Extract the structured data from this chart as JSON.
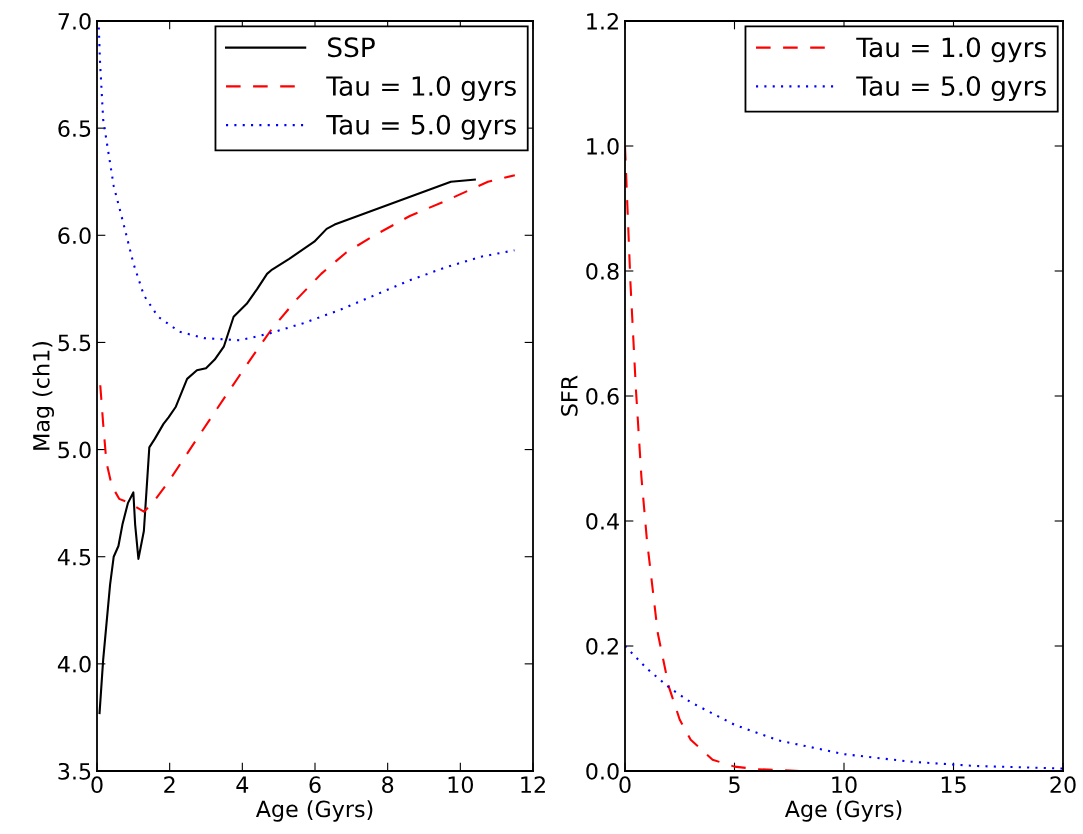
{
  "chart_data": [
    {
      "type": "line",
      "xlabel": "Age (Gyrs)",
      "ylabel": "Mag (ch1)",
      "xlim": [
        0,
        12
      ],
      "ylim": [
        3.5,
        7.0
      ],
      "xticks": [
        0,
        2,
        4,
        6,
        8,
        10,
        12
      ],
      "yticks": [
        3.5,
        {
          "value": 4,
          "label": "4.0"
        },
        4.5,
        {
          "value": 5,
          "label": "5.0"
        },
        5.5,
        {
          "value": 6,
          "label": "6.0"
        },
        6.5,
        {
          "value": 7,
          "label": "7.0"
        }
      ],
      "legend": "top right",
      "grid": false,
      "series": [
        {
          "name": "SSP",
          "color": "#000000",
          "line_style": "solid",
          "x": [
            0.07,
            0.17,
            0.36,
            0.46,
            0.59,
            0.7,
            0.85,
            1.0,
            1.05,
            1.14,
            1.29,
            1.44,
            1.59,
            1.83,
            1.97,
            2.17,
            2.48,
            2.75,
            3.0,
            3.24,
            3.49,
            3.76,
            4.12,
            4.41,
            4.68,
            4.82,
            5.29,
            5.98,
            6.32,
            6.54,
            9.74,
            10.4
          ],
          "values": [
            3.77,
            4.02,
            4.37,
            4.5,
            4.55,
            4.65,
            4.75,
            4.8,
            4.65,
            4.49,
            4.62,
            5.01,
            5.05,
            5.12,
            5.15,
            5.2,
            5.33,
            5.37,
            5.38,
            5.42,
            5.48,
            5.62,
            5.68,
            5.75,
            5.82,
            5.84,
            5.89,
            5.97,
            6.03,
            6.05,
            6.25,
            6.26
          ]
        },
        {
          "name": "Tau = 1.0 gyrs",
          "color": "#ff0000",
          "line_style": "dashed",
          "x": [
            0.09,
            0.17,
            0.26,
            0.41,
            0.61,
            0.9,
            1.29,
            1.53,
            1.97,
            2.75,
            3.54,
            4.22,
            4.8,
            5.49,
            6.17,
            6.86,
            7.64,
            8.61,
            9.59,
            10.76,
            11.5
          ],
          "values": [
            5.3,
            5.12,
            4.94,
            4.83,
            4.77,
            4.75,
            4.71,
            4.75,
            4.85,
            5.05,
            5.25,
            5.42,
            5.56,
            5.7,
            5.82,
            5.92,
            6.0,
            6.09,
            6.16,
            6.25,
            6.28
          ]
        },
        {
          "name": "Tau = 5.0 gyrs",
          "color": "#0000ff",
          "line_style": "dotted",
          "x": [
            0.05,
            0.08,
            0.17,
            0.46,
            0.75,
            1.0,
            1.29,
            1.68,
            2.27,
            2.95,
            3.93,
            4.71,
            5.68,
            6.66,
            7.64,
            8.61,
            9.59,
            10.57,
            11.49
          ],
          "values": [
            6.97,
            6.82,
            6.54,
            6.23,
            6.04,
            5.87,
            5.72,
            5.62,
            5.55,
            5.52,
            5.51,
            5.54,
            5.59,
            5.65,
            5.72,
            5.79,
            5.85,
            5.9,
            5.93
          ]
        }
      ]
    },
    {
      "type": "line",
      "xlabel": "Age (Gyrs)",
      "ylabel": "SFR",
      "xlim": [
        0,
        20
      ],
      "ylim": [
        0.0,
        1.2
      ],
      "xticks": [
        0,
        5,
        10,
        15,
        20
      ],
      "yticks": [
        {
          "value": 0,
          "label": "0.0"
        },
        0.2,
        0.4,
        0.6,
        0.8,
        {
          "value": 1,
          "label": "1.0"
        },
        1.2
      ],
      "legend": "top right",
      "grid": false,
      "series": [
        {
          "name": "Tau = 1.0 gyrs",
          "color": "#ff0000",
          "line_style": "dashed",
          "x": [
            0,
            0.25,
            0.5,
            0.75,
            1,
            1.5,
            2,
            2.5,
            3,
            4,
            5,
            6,
            8,
            10,
            20
          ],
          "values": [
            1.0,
            0.78,
            0.61,
            0.47,
            0.37,
            0.22,
            0.135,
            0.082,
            0.05,
            0.018,
            0.007,
            0.003,
            0.0,
            0.0,
            0.0
          ]
        },
        {
          "name": "Tau = 5.0 gyrs",
          "color": "#0000ff",
          "line_style": "dotted",
          "x": [
            0,
            1,
            2,
            3,
            5,
            7,
            10,
            13,
            16,
            20
          ],
          "values": [
            0.2,
            0.164,
            0.134,
            0.11,
            0.074,
            0.049,
            0.027,
            0.015,
            0.008,
            0.004
          ]
        }
      ]
    }
  ]
}
